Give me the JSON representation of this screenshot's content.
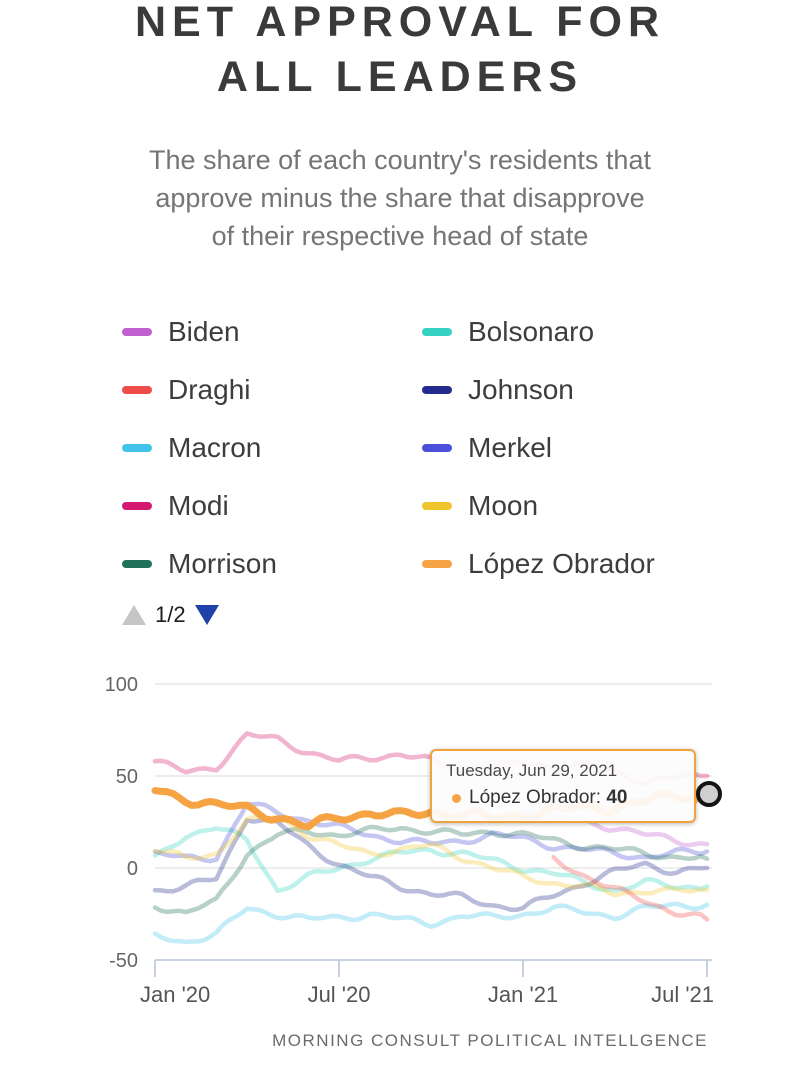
{
  "header": {
    "title_lines": [
      "NET APPROVAL FOR",
      "ALL LEADERS"
    ],
    "subtitle_lines": [
      "The share of each country's residents that",
      "approve minus the share that disapprove",
      "of their respective head of state"
    ]
  },
  "legend": {
    "items": [
      {
        "label": "Biden",
        "color": "#c05fd0"
      },
      {
        "label": "Bolsonaro",
        "color": "#35d2c4"
      },
      {
        "label": "Draghi",
        "color": "#ee4b4b"
      },
      {
        "label": "Johnson",
        "color": "#232c8c"
      },
      {
        "label": "Macron",
        "color": "#41c3ea"
      },
      {
        "label": "Merkel",
        "color": "#4b50d8"
      },
      {
        "label": "Modi",
        "color": "#d31a6e"
      },
      {
        "label": "Moon",
        "color": "#eec62c"
      },
      {
        "label": "Morrison",
        "color": "#20705a"
      },
      {
        "label": "López Obrador",
        "color": "#f5a343"
      }
    ],
    "pagination": {
      "label": "1/2",
      "up_color": "#c6c6c6",
      "down_color": "#1f41a8"
    }
  },
  "tooltip": {
    "date": "Tuesday, Jun 29, 2021",
    "series": "López Obrador",
    "separator": ": ",
    "value": "40",
    "border_color": "#f0a23e",
    "bullet_color": "#f5a343"
  },
  "footer": {
    "source": "MORNING CONSULT POLITICAL INTELLGENCE"
  },
  "chart_data": {
    "type": "line",
    "title": "Net approval for all leaders",
    "x_unit": "month",
    "x_range": [
      "Jan 2020",
      "Jul 2021"
    ],
    "x_tick_labels": [
      "Jan '20",
      "Jul '20",
      "Jan '21",
      "Jul '21"
    ],
    "x_tick_month_index": [
      0,
      6,
      12,
      18
    ],
    "y_ticks": [
      100,
      50,
      0,
      -50
    ],
    "ylim": [
      -50,
      100
    ],
    "grid": "horizontal",
    "grid_color": "#e2e2e2",
    "axis_color": "#b9c6d6",
    "highlight_series": "López Obrador",
    "annotation": {
      "date": "Tuesday, Jun 29, 2021",
      "series": "López Obrador",
      "value": 40
    },
    "series": [
      {
        "name": "Modi",
        "color": "#d31a6e",
        "values": [
          58,
          52,
          55,
          72,
          70,
          63,
          58,
          60,
          62,
          58,
          53,
          55,
          57,
          55,
          56,
          52,
          47,
          49,
          50
        ]
      },
      {
        "name": "Bolsonaro",
        "color": "#35d2c4",
        "values": [
          5,
          18,
          22,
          15,
          -12,
          -5,
          0,
          5,
          8,
          10,
          8,
          4,
          0,
          -3,
          -8,
          -12,
          -8,
          -10,
          -10
        ]
      },
      {
        "name": "Johnson",
        "color": "#232c8c",
        "values": [
          -12,
          -10,
          -6,
          28,
          24,
          12,
          2,
          -5,
          -10,
          -14,
          -16,
          -20,
          -22,
          -15,
          -8,
          -2,
          2,
          -2,
          0
        ]
      },
      {
        "name": "Merkel",
        "color": "#4b50d8",
        "values": [
          8,
          5,
          6,
          35,
          30,
          26,
          22,
          18,
          15,
          13,
          15,
          18,
          16,
          12,
          10,
          8,
          6,
          8,
          9
        ]
      },
      {
        "name": "Macron",
        "color": "#41c3ea",
        "values": [
          -37,
          -40,
          -36,
          -22,
          -25,
          -28,
          -27,
          -25,
          -28,
          -30,
          -26,
          -27,
          -25,
          -22,
          -24,
          -26,
          -22,
          -20,
          -20
        ]
      },
      {
        "name": "Morrison",
        "color": "#20705a",
        "values": [
          -20,
          -25,
          -18,
          8,
          18,
          20,
          18,
          20,
          22,
          20,
          18,
          20,
          18,
          15,
          12,
          10,
          8,
          6,
          5
        ]
      },
      {
        "name": "Moon",
        "color": "#eec62c",
        "values": [
          10,
          5,
          8,
          25,
          28,
          18,
          12,
          8,
          10,
          12,
          6,
          0,
          -5,
          -8,
          -10,
          -14,
          -12,
          -13,
          -12
        ]
      },
      {
        "name": "Biden",
        "color": "#c05fd0",
        "values": [
          null,
          null,
          null,
          null,
          null,
          null,
          null,
          null,
          null,
          null,
          null,
          null,
          32,
          28,
          25,
          22,
          18,
          15,
          13
        ]
      },
      {
        "name": "Draghi",
        "color": "#ee4b4b",
        "values": [
          null,
          null,
          null,
          null,
          null,
          null,
          null,
          null,
          null,
          null,
          null,
          null,
          null,
          5,
          -4,
          -12,
          -18,
          -24,
          -28
        ]
      },
      {
        "name": "López Obrador",
        "color": "#f5a343",
        "highlight": true,
        "values": [
          42,
          38,
          34,
          32,
          28,
          22,
          28,
          30,
          28,
          31,
          29,
          27,
          29,
          31,
          33,
          33,
          36,
          40,
          40
        ]
      }
    ]
  }
}
